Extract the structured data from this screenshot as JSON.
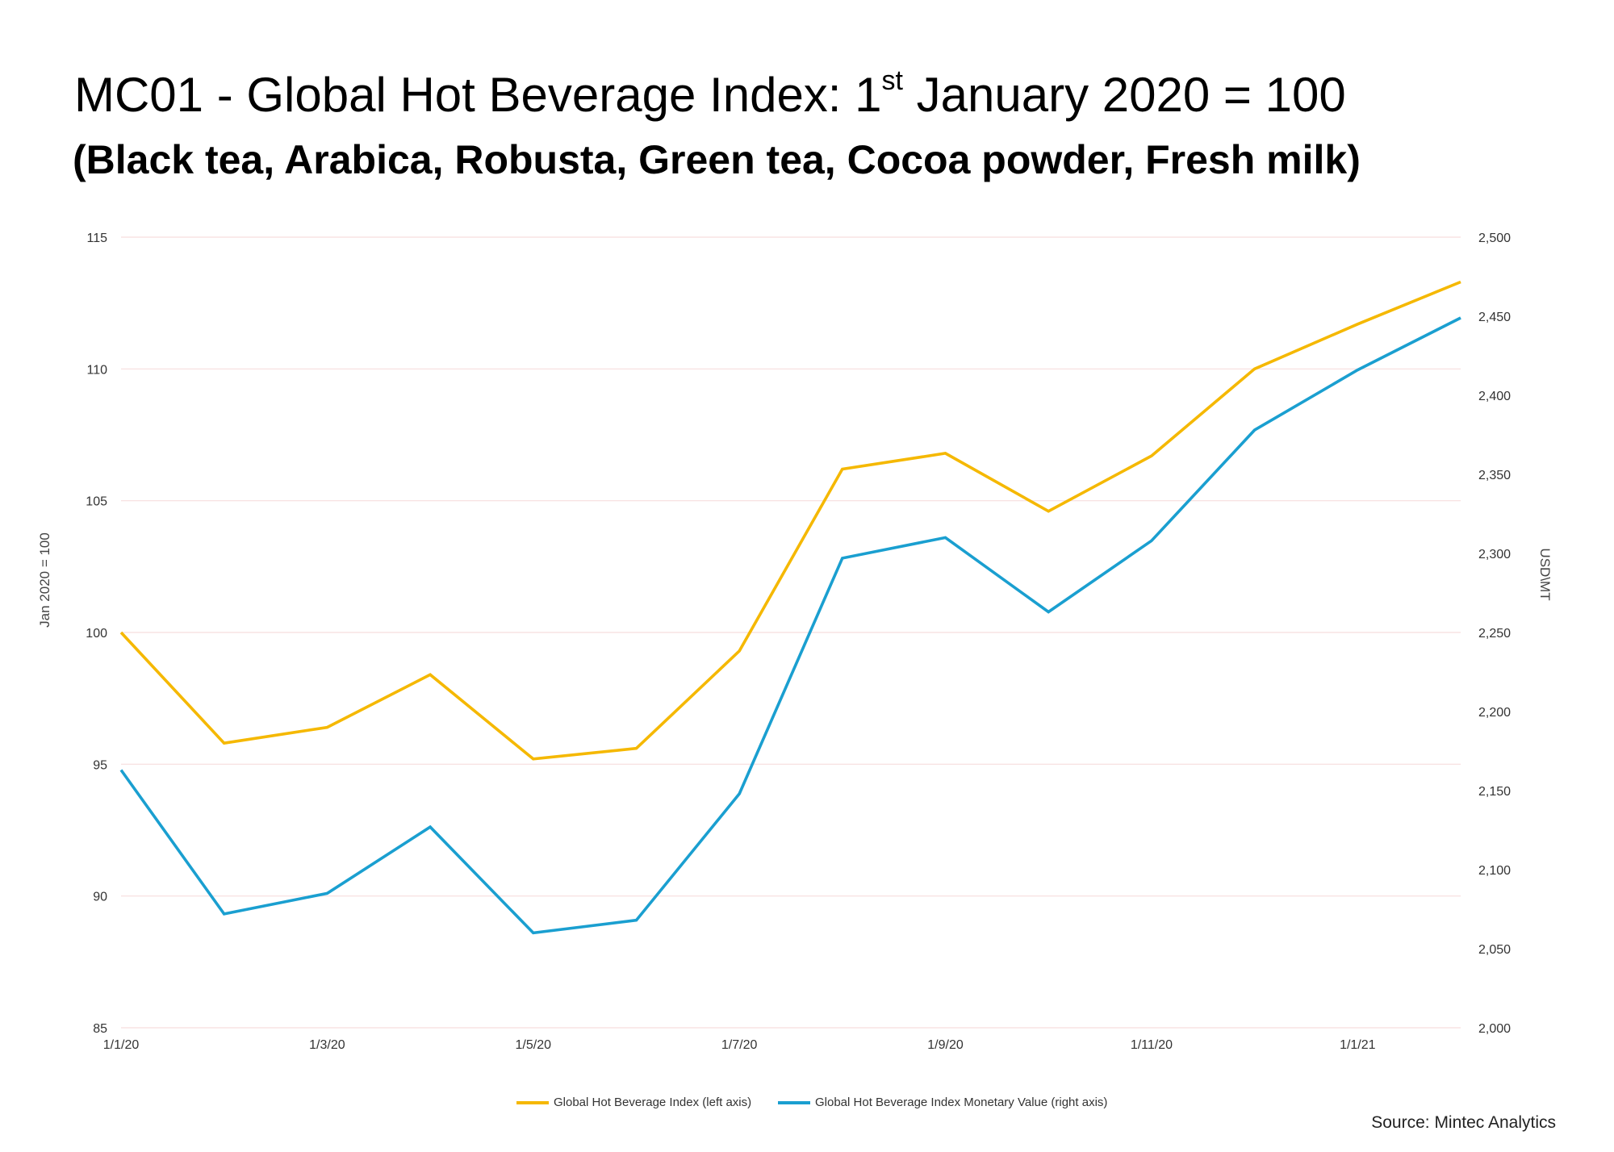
{
  "title": {
    "prefix": "MC01 - Global Hot Beverage Index: 1",
    "superscript": "st",
    "suffix": " January 2020 = 100"
  },
  "subtitle": "(Black tea, Arabica, Robusta, Green tea, Cocoa powder, Fresh milk)",
  "source": "Source: Mintec Analytics",
  "colors": {
    "index_line": "#f5b800",
    "monetary_line": "#1a9fd0",
    "grid": "#f7dede"
  },
  "chart_data": {
    "type": "line",
    "x": [
      "1/1/20",
      "1/2/20",
      "1/3/20",
      "1/4/20",
      "1/5/20",
      "1/6/20",
      "1/7/20",
      "1/8/20",
      "1/9/20",
      "1/10/20",
      "1/11/20",
      "1/12/20",
      "1/1/21",
      "1/2/21"
    ],
    "x_tick_labels": [
      "1/1/20",
      "1/3/20",
      "1/5/20",
      "1/7/20",
      "1/9/20",
      "1/11/20",
      "1/1/21"
    ],
    "series": [
      {
        "name": "Global Hot Beverage Index (left axis)",
        "axis": "left",
        "color": "#f5b800",
        "values": [
          100.0,
          95.8,
          96.4,
          98.4,
          95.2,
          95.6,
          99.3,
          106.2,
          106.8,
          104.6,
          106.7,
          110.0,
          111.7,
          113.3
        ]
      },
      {
        "name": "Global Hot Beverage Index Monetary Value (right axis)",
        "axis": "right",
        "color": "#1a9fd0",
        "values": [
          2163,
          2072,
          2085,
          2127,
          2060,
          2068,
          2148,
          2297,
          2310,
          2263,
          2308,
          2378,
          2416,
          2449
        ]
      }
    ],
    "y_left": {
      "label": "Jan  2020 = 100",
      "range": [
        85,
        115
      ],
      "ticks": [
        "85",
        "90",
        "95",
        "100",
        "105",
        "110",
        "115"
      ]
    },
    "y_right": {
      "label": "USD\\MT",
      "range": [
        2000,
        2500
      ],
      "ticks": [
        "2,000",
        "2,050",
        "2,100",
        "2,150",
        "2,200",
        "2,250",
        "2,300",
        "2,350",
        "2,400",
        "2,450",
        "2,500"
      ]
    },
    "grid": true,
    "legend_position": "bottom"
  }
}
